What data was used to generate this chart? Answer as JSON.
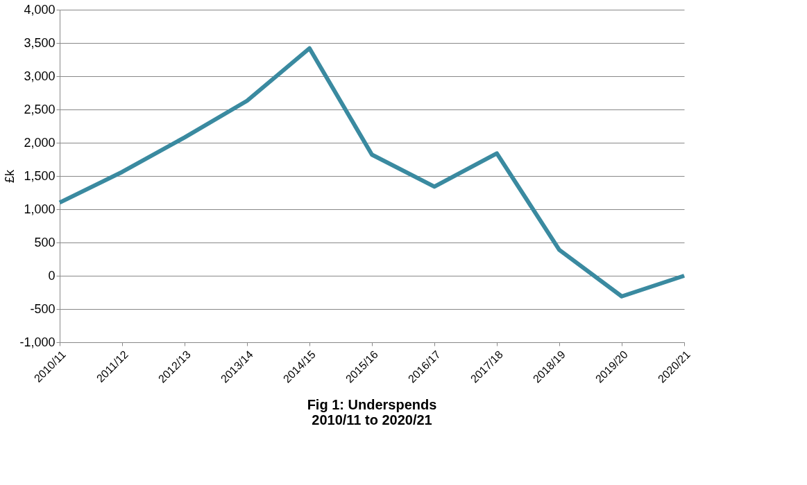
{
  "chart_data": {
    "type": "line",
    "title": "Fig 1: Underspends\n2010/11 to 2020/21",
    "ylabel": "£k",
    "categories": [
      "2010/11",
      "2011/12",
      "2012/13",
      "2013/14",
      "2014/15",
      "2015/16",
      "2016/17",
      "2017/18",
      "2018/19",
      "2019/20",
      "2020/21"
    ],
    "series": [
      {
        "color": "#3a8aa0",
        "values": [
          1100,
          1560,
          2080,
          2630,
          3420,
          1820,
          1340,
          1840,
          390,
          -310,
          0
        ]
      }
    ],
    "ylim": [
      -1000,
      4000
    ],
    "yticks": [
      {
        "value": -1000,
        "label": "-1,000"
      },
      {
        "value": -500,
        "label": "-500"
      },
      0,
      500,
      {
        "value": 1000,
        "label": "1,000"
      },
      {
        "value": 1500,
        "label": "1,500"
      },
      {
        "value": 2000,
        "label": "2,000"
      },
      {
        "value": 2500,
        "label": "2,500"
      },
      {
        "value": 3000,
        "label": "3,000"
      },
      {
        "value": 3500,
        "label": "3,500"
      },
      {
        "value": 4000,
        "label": "4,000"
      }
    ],
    "grid": "y",
    "marker": "none",
    "line_style": "solid"
  }
}
